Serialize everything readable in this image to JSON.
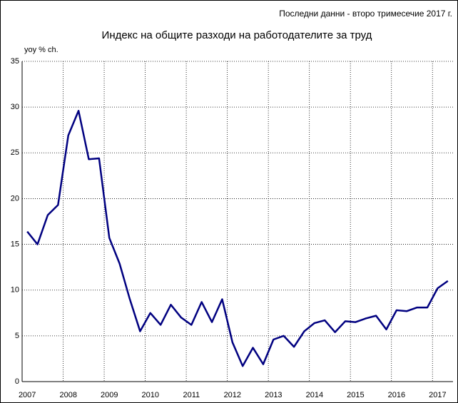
{
  "chart_data": {
    "type": "line",
    "title": "Индекс на общите разходи на работодателите за труд",
    "subtitle": "Последни данни - второ тримесечие 2017 г.",
    "y_label": "yoy % ch.",
    "categories": [
      "2007",
      null,
      null,
      null,
      "2008",
      null,
      null,
      null,
      "2009",
      null,
      null,
      null,
      "2010",
      null,
      null,
      null,
      "2011",
      null,
      null,
      null,
      "2012",
      null,
      null,
      null,
      "2013",
      null,
      null,
      null,
      "2014",
      null,
      null,
      null,
      "2015",
      null,
      null,
      null,
      "2016",
      null,
      null,
      null,
      "2017",
      null
    ],
    "values": [
      16.4,
      15.0,
      18.2,
      19.3,
      26.9,
      29.6,
      24.3,
      24.4,
      15.7,
      12.9,
      9.0,
      5.5,
      7.5,
      6.2,
      8.4,
      7.0,
      6.2,
      8.7,
      6.5,
      9.0,
      4.3,
      1.7,
      3.7,
      1.9,
      4.6,
      5.0,
      3.8,
      5.5,
      6.4,
      6.7,
      5.4,
      6.6,
      6.5,
      6.9,
      7.2,
      5.7,
      7.8,
      7.7,
      8.1,
      8.1,
      10.2,
      11.0
    ],
    "color": "#000080",
    "ylim": [
      0,
      35
    ],
    "yticks": [
      0,
      5,
      10,
      15,
      20,
      25,
      30,
      35
    ],
    "grid": true
  }
}
